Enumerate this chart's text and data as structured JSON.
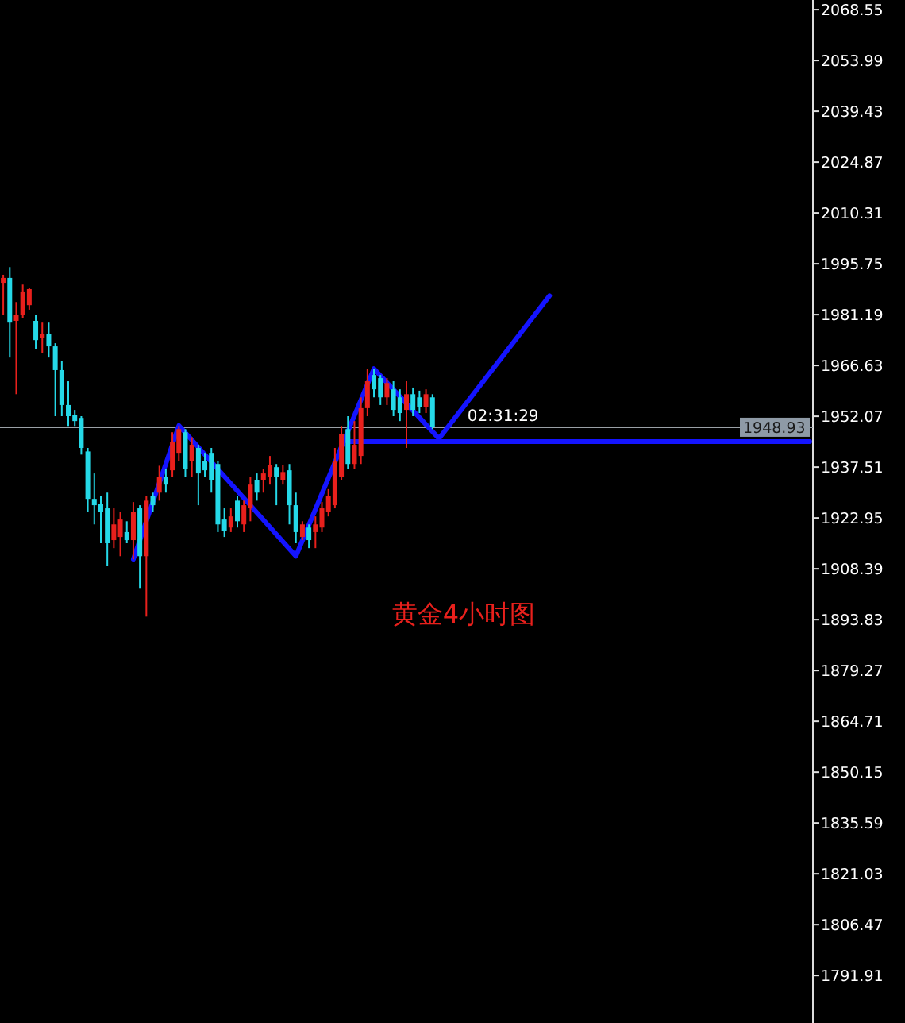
{
  "chart_data": {
    "type": "candlestick",
    "categories": [
      null,
      null,
      null,
      null,
      null,
      null,
      null,
      null,
      null,
      null,
      null,
      null,
      null,
      null,
      null,
      null,
      null,
      null,
      null,
      null,
      null,
      null,
      null,
      null,
      null,
      null,
      null,
      null,
      null,
      null,
      null,
      null,
      null,
      null,
      null,
      null,
      null,
      null,
      null,
      null,
      null,
      null,
      null,
      null,
      null,
      null,
      null,
      null,
      null,
      null,
      null,
      null,
      null,
      null,
      null,
      null,
      null,
      null,
      null,
      null,
      null,
      null,
      null,
      null,
      null,
      null,
      null,
      null,
      null,
      null,
      null,
      null,
      null,
      null,
      null,
      null,
      null,
      null,
      null,
      null,
      null,
      null,
      null,
      null,
      null,
      null,
      null,
      null,
      null,
      null,
      null,
      null,
      null,
      null,
      null,
      null,
      null,
      null,
      null,
      null,
      null,
      null,
      null,
      null,
      null,
      null,
      null,
      null,
      null,
      null,
      null,
      null,
      null,
      null,
      null,
      null,
      null,
      null,
      null,
      null,
      null,
      null,
      null,
      null,
      null
    ],
    "ohlc": [
      [
        1990.3,
        1992.6,
        1981.2,
        1991.7
      ],
      [
        1991.7,
        1994.8,
        1968.9,
        1978.9
      ],
      [
        1979.4,
        1984.8,
        1958.4,
        1981.2
      ],
      [
        1981.2,
        1989.8,
        1980.3,
        1987.6
      ],
      [
        1983.9,
        1988.9,
        1982.6,
        1988.5
      ],
      [
        1979.4,
        1981.2,
        1971.2,
        1973.9
      ],
      [
        1974.4,
        1978.9,
        1970.3,
        1975.7
      ],
      [
        1975.7,
        1978.9,
        1968.9,
        1972.1
      ],
      [
        1972.1,
        1973.0,
        1952.1,
        1965.3
      ],
      [
        1965.3,
        1968.0,
        1952.1,
        1955.3
      ],
      [
        1955.3,
        1962.1,
        1949.3,
        1952.1
      ],
      [
        1952.5,
        1953.9,
        1949.3,
        1950.7
      ],
      [
        1951.6,
        1952.1,
        1941.1,
        1943.0
      ],
      [
        1942.0,
        1943.0,
        1924.8,
        1928.4
      ],
      [
        1928.4,
        1935.7,
        1921.1,
        1926.6
      ],
      [
        1927.0,
        1929.3,
        1915.7,
        1924.8
      ],
      [
        1925.7,
        1930.2,
        1909.3,
        1915.7
      ],
      [
        1916.6,
        1925.7,
        1914.3,
        1921.1
      ],
      [
        1917.5,
        1924.8,
        1912.0,
        1922.5
      ],
      [
        1918.9,
        1922.0,
        1915.7,
        1916.6
      ],
      [
        1916.6,
        1927.5,
        1911.1,
        1924.8
      ],
      [
        1925.7,
        1926.6,
        1902.9,
        1912.0
      ],
      [
        1912.0,
        1929.3,
        1894.7,
        1927.9
      ],
      [
        1929.3,
        1930.2,
        1924.8,
        1926.6
      ],
      [
        1930.2,
        1937.9,
        1927.9,
        1934.8
      ],
      [
        1934.8,
        1937.0,
        1930.2,
        1932.5
      ],
      [
        1936.6,
        1947.5,
        1934.8,
        1944.8
      ],
      [
        1941.6,
        1949.3,
        1939.3,
        1948.4
      ],
      [
        1947.5,
        1948.4,
        1934.8,
        1937.0
      ],
      [
        1939.3,
        1946.1,
        1934.8,
        1943.9
      ],
      [
        1943.0,
        1943.9,
        1926.6,
        1935.7
      ],
      [
        1939.3,
        1941.6,
        1934.8,
        1936.6
      ],
      [
        1941.6,
        1943.0,
        1930.2,
        1933.9
      ],
      [
        1938.4,
        1939.3,
        1918.9,
        1921.1
      ],
      [
        1922.5,
        1925.7,
        1917.5,
        1919.3
      ],
      [
        1920.2,
        1925.7,
        1918.9,
        1923.4
      ],
      [
        1927.9,
        1929.3,
        1920.2,
        1922.0
      ],
      [
        1921.1,
        1927.9,
        1918.9,
        1926.6
      ],
      [
        1925.7,
        1934.8,
        1922.0,
        1932.5
      ],
      [
        1933.9,
        1935.7,
        1927.9,
        1930.2
      ],
      [
        1933.9,
        1937.0,
        1930.2,
        1935.7
      ],
      [
        1934.8,
        1940.7,
        1932.5,
        1938.0
      ],
      [
        1937.5,
        1938.4,
        1926.6,
        1934.8
      ],
      [
        1933.9,
        1938.0,
        1932.5,
        1936.1
      ],
      [
        1936.6,
        1938.4,
        1921.1,
        1926.6
      ],
      [
        1926.6,
        1930.2,
        1915.7,
        1918.9
      ],
      [
        1917.5,
        1922.0,
        1916.6,
        1921.1
      ],
      [
        1920.2,
        1921.1,
        1914.3,
        1916.6
      ],
      [
        1918.9,
        1923.4,
        1914.3,
        1921.1
      ],
      [
        1920.2,
        1927.5,
        1918.9,
        1925.7
      ],
      [
        1924.8,
        1931.2,
        1923.4,
        1929.3
      ],
      [
        1926.6,
        1943.0,
        1925.7,
        1939.3
      ],
      [
        1934.8,
        1949.3,
        1933.9,
        1947.1
      ],
      [
        1948.4,
        1952.1,
        1937.0,
        1938.4
      ],
      [
        1938.4,
        1950.7,
        1937.0,
        1943.9
      ],
      [
        1940.7,
        1957.5,
        1938.4,
        1954.4
      ],
      [
        1954.4,
        1965.7,
        1952.1,
        1962.1
      ],
      [
        1963.9,
        1965.7,
        1957.5,
        1959.8
      ],
      [
        1963.0,
        1963.9,
        1955.3,
        1957.5
      ],
      [
        1957.5,
        1963.0,
        1955.3,
        1961.6
      ],
      [
        1959.8,
        1962.1,
        1952.1,
        1953.9
      ],
      [
        1957.5,
        1959.8,
        1950.7,
        1953.0
      ],
      [
        1953.9,
        1962.1,
        1943.0,
        1958.4
      ],
      [
        1958.4,
        1960.3,
        1952.1,
        1953.9
      ],
      [
        1957.5,
        1959.4,
        1953.0,
        1954.8
      ],
      [
        1954.8,
        1959.8,
        1953.0,
        1958.4
      ],
      [
        1957.5,
        1958.4,
        1948.4,
        1948.93
      ],
      null,
      null,
      null,
      null,
      null,
      null,
      null,
      null,
      null,
      null,
      null,
      null,
      null,
      null,
      null,
      null,
      null,
      null,
      null,
      null,
      null,
      null,
      null,
      null,
      null,
      null,
      null,
      null,
      null,
      null,
      null,
      null,
      null,
      null,
      null,
      null,
      null,
      null,
      null,
      null,
      null,
      null,
      null,
      null,
      null,
      null,
      null,
      null,
      null,
      null,
      null,
      null,
      null,
      null,
      null,
      null,
      null,
      null
    ],
    "colors": [
      "#e8201c",
      "#25d9e8",
      "#e8201c",
      "#e8201c",
      "#e8201c",
      "#25d9e8",
      "#e8201c",
      "#25d9e8",
      "#25d9e8",
      "#25d9e8",
      "#25d9e8",
      "#25d9e8",
      "#25d9e8",
      "#25d9e8",
      "#25d9e8",
      "#25d9e8",
      "#25d9e8",
      "#e8201c",
      "#e8201c",
      "#25d9e8",
      "#e8201c",
      "#25d9e8",
      "#e8201c",
      "#25d9e8",
      "#e8201c",
      "#25d9e8",
      "#e8201c",
      "#e8201c",
      "#25d9e8",
      "#e8201c",
      "#25d9e8",
      "#25d9e8",
      "#25d9e8",
      "#25d9e8",
      "#25d9e8",
      "#e8201c",
      "#25d9e8",
      "#e8201c",
      "#e8201c",
      "#25d9e8",
      "#e8201c",
      "#e8201c",
      "#25d9e8",
      "#e8201c",
      "#25d9e8",
      "#25d9e8",
      "#e8201c",
      "#25d9e8",
      "#e8201c",
      "#e8201c",
      "#e8201c",
      "#e8201c",
      "#e8201c",
      "#25d9e8",
      "#e8201c",
      "#e8201c",
      "#e8201c",
      "#25d9e8",
      "#25d9e8",
      "#e8201c",
      "#25d9e8",
      "#25d9e8",
      "#e8201c",
      "#25d9e8",
      "#25d9e8",
      "#e8201c",
      "#25d9e8",
      null,
      null,
      null,
      null,
      null,
      null,
      null,
      null,
      null,
      null,
      null,
      null,
      null,
      null,
      null,
      null,
      null,
      null,
      null,
      null,
      null,
      null,
      null,
      null,
      null,
      null,
      null,
      null,
      null,
      null,
      null,
      null,
      null,
      null,
      null,
      null,
      null,
      null,
      null,
      null,
      null,
      null,
      null,
      null,
      null,
      null,
      null,
      null,
      null,
      null,
      null,
      null,
      null,
      null,
      null,
      null,
      null,
      null
    ],
    "series": [
      {
        "type": "line",
        "color": "#1414ff",
        "values": [
          null,
          null,
          null,
          null,
          null,
          null,
          null,
          null,
          null,
          null,
          null,
          null,
          null,
          null,
          null,
          null,
          null,
          null,
          null,
          null,
          1911.1,
          null,
          null,
          null,
          null,
          null,
          null,
          1949.4,
          null,
          null,
          null,
          null,
          null,
          null,
          null,
          null,
          null,
          null,
          null,
          null,
          null,
          null,
          null,
          null,
          null,
          1912.0,
          null,
          null,
          null,
          null,
          null,
          null,
          null,
          null,
          null,
          null,
          null,
          1965.7,
          null,
          null,
          null,
          null,
          null,
          null,
          null,
          null,
          null,
          1945.7,
          null,
          null,
          null,
          null,
          null,
          null,
          null,
          null,
          null,
          null,
          null,
          null,
          null,
          null,
          null,
          null,
          1986.6,
          null,
          null,
          null,
          null,
          null,
          null,
          null,
          null,
          null,
          null,
          null,
          null,
          null,
          null,
          null,
          null,
          null,
          null,
          null,
          null,
          null,
          null,
          null,
          null,
          null,
          null,
          null,
          null,
          null,
          null,
          null,
          null,
          null,
          null,
          null,
          null,
          null,
          null,
          null,
          null
        ]
      },
      {
        "type": "line",
        "color": "#1414ff",
        "values": [
          null,
          null,
          null,
          null,
          null,
          null,
          null,
          null,
          null,
          null,
          null,
          null,
          null,
          null,
          null,
          null,
          null,
          null,
          null,
          null,
          null,
          null,
          null,
          null,
          null,
          null,
          null,
          null,
          null,
          null,
          null,
          null,
          null,
          null,
          null,
          null,
          null,
          null,
          null,
          null,
          null,
          null,
          null,
          null,
          null,
          null,
          null,
          null,
          null,
          null,
          null,
          null,
          null,
          1944.8,
          null,
          null,
          null,
          null,
          null,
          null,
          null,
          null,
          null,
          null,
          null,
          null,
          null,
          null,
          null,
          null,
          null,
          null,
          null,
          null,
          null,
          null,
          null,
          null,
          null,
          null,
          null,
          null,
          null,
          null,
          null,
          null,
          null,
          null,
          null,
          null,
          null,
          null,
          null,
          null,
          null,
          null,
          null,
          null,
          null,
          null,
          null,
          null,
          null,
          null,
          null,
          null,
          null,
          null,
          null,
          null,
          null,
          null,
          null,
          null,
          null,
          null,
          null,
          null,
          null,
          null,
          null,
          null,
          null,
          null,
          1944.8
        ]
      }
    ],
    "ylim": [
      1778.3,
      2071.3
    ],
    "yticks": [
      2068.55,
      2053.99,
      2039.43,
      2024.87,
      2010.31,
      1995.75,
      1981.19,
      1966.63,
      1952.07,
      1937.51,
      1922.95,
      1908.39,
      1893.83,
      1879.27,
      1864.71,
      1850.15,
      1835.59,
      1821.03,
      1806.47,
      1791.91
    ],
    "ref_lines": [
      {
        "axis": "y",
        "value": 1948.93,
        "label": "1948.93",
        "color": "#9aa0a6"
      }
    ],
    "annotations": [
      "02:31:29",
      "黄金4小时图"
    ],
    "tick_labels": "y",
    "grid": false
  }
}
